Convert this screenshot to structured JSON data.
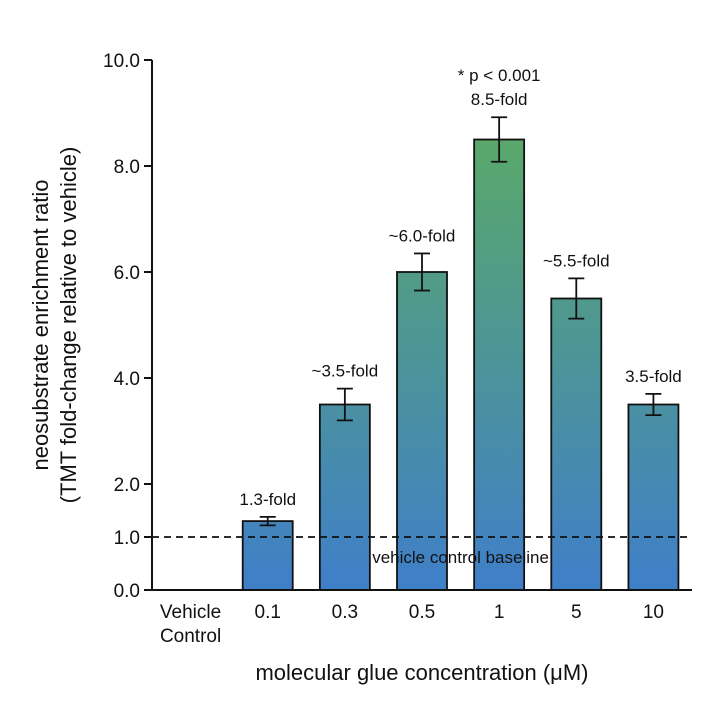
{
  "colors": {
    "bar_low": "#3f7fc9",
    "bar_high": "#5aa86a",
    "axis": "#111111",
    "background": "#ffffff"
  },
  "chart_data": {
    "type": "bar",
    "title": "",
    "xlabel": "molecular glue concentration (μM)",
    "ylabel": [
      "neosubstrate enrichment ratio",
      "(TMT fold-change relative to vehicle)"
    ],
    "ylim": [
      0,
      10
    ],
    "yticks": [
      "0.0",
      "1.0",
      "2.0",
      "4.0",
      "6.0",
      "8.0",
      "10.0"
    ],
    "grid": false,
    "legend": "none",
    "categories": [
      [
        "Vehicle",
        "Control"
      ],
      [
        "0.1"
      ],
      [
        "0.3"
      ],
      [
        "0.5"
      ],
      [
        "1"
      ],
      [
        "5"
      ],
      [
        "10"
      ]
    ],
    "values": [
      0,
      1.3,
      3.5,
      6.0,
      8.5,
      5.5,
      3.5
    ],
    "error": [
      0,
      0.08,
      0.3,
      0.35,
      0.42,
      0.38,
      0.2
    ],
    "data_labels": [
      "",
      "1.3-fold",
      "~3.5-fold",
      "~6.0-fold",
      "8.5-fold",
      "~5.5-fold",
      "3.5-fold"
    ],
    "significance_label": "* p < 0.001",
    "baseline": {
      "value": 1.0,
      "style": "dashed",
      "label": "vehicle control baseline"
    }
  }
}
